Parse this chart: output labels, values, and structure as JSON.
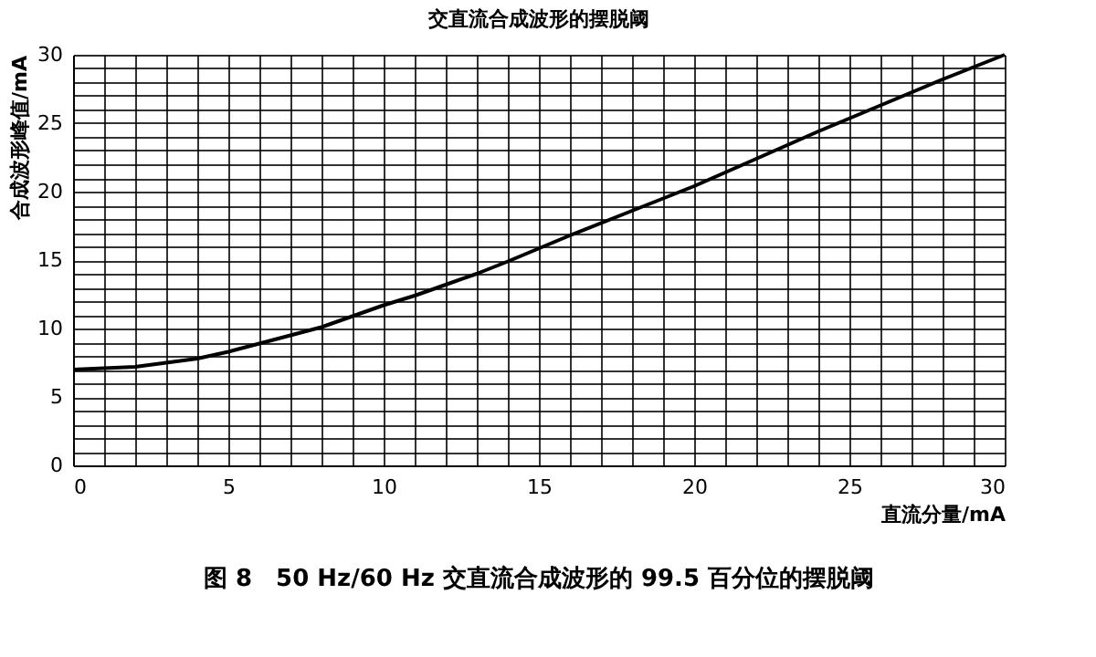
{
  "chart_data": {
    "type": "line",
    "title": "交直流合成波形的摆脱阈",
    "xlabel": "直流分量/mA",
    "ylabel": "合成波形峰值/mA",
    "annotations": [
      "图 8　50 Hz/60 Hz 交直流合成波形的 99.5 百分位的摆脱阈"
    ],
    "x": [
      0,
      1,
      2,
      3,
      4,
      5,
      6,
      7,
      8,
      9,
      10,
      11,
      12,
      13,
      14,
      16,
      18,
      20,
      22,
      24,
      26,
      28,
      30
    ],
    "series": [
      {
        "color": "#000000",
        "values": [
          7.0,
          7.1,
          7.2,
          7.5,
          7.8,
          8.3,
          8.9,
          9.5,
          10.1,
          10.9,
          11.7,
          12.4,
          13.2,
          14.0,
          14.9,
          16.8,
          18.6,
          20.4,
          22.4,
          24.4,
          26.3,
          28.2,
          30.0
        ]
      }
    ],
    "xlim": [
      0,
      30
    ],
    "ylim": [
      0,
      30
    ],
    "xticks": [
      0,
      {
        "value": 1,
        "label": null
      },
      {
        "value": 2,
        "label": null
      },
      {
        "value": 3,
        "label": null
      },
      {
        "value": 4,
        "label": null
      },
      5,
      {
        "value": 6,
        "label": null
      },
      {
        "value": 7,
        "label": null
      },
      {
        "value": 8,
        "label": null
      },
      {
        "value": 9,
        "label": null
      },
      10,
      {
        "value": 11,
        "label": null
      },
      {
        "value": 12,
        "label": null
      },
      {
        "value": 13,
        "label": null
      },
      {
        "value": 14,
        "label": null
      },
      15,
      {
        "value": 16,
        "label": null
      },
      {
        "value": 17,
        "label": null
      },
      {
        "value": 18,
        "label": null
      },
      {
        "value": 19,
        "label": null
      },
      20,
      {
        "value": 21,
        "label": null
      },
      {
        "value": 22,
        "label": null
      },
      {
        "value": 23,
        "label": null
      },
      {
        "value": 24,
        "label": null
      },
      25,
      {
        "value": 26,
        "label": null
      },
      {
        "value": 27,
        "label": null
      },
      {
        "value": 28,
        "label": null
      },
      {
        "value": 29,
        "label": null
      },
      30
    ],
    "yticks": [
      0,
      {
        "value": 1,
        "label": null
      },
      {
        "value": 2,
        "label": null
      },
      {
        "value": 3,
        "label": null
      },
      {
        "value": 4,
        "label": null
      },
      5,
      {
        "value": 6,
        "label": null
      },
      {
        "value": 7,
        "label": null
      },
      {
        "value": 8,
        "label": null
      },
      {
        "value": 9,
        "label": null
      },
      10,
      {
        "value": 11,
        "label": null
      },
      {
        "value": 12,
        "label": null
      },
      {
        "value": 13,
        "label": null
      },
      {
        "value": 14,
        "label": null
      },
      15,
      {
        "value": 16,
        "label": null
      },
      {
        "value": 17,
        "label": null
      },
      {
        "value": 18,
        "label": null
      },
      {
        "value": 19,
        "label": null
      },
      20,
      {
        "value": 21,
        "label": null
      },
      {
        "value": 22,
        "label": null
      },
      {
        "value": 23,
        "label": null
      },
      {
        "value": 24,
        "label": null
      },
      25,
      {
        "value": 26,
        "label": null
      },
      {
        "value": 27,
        "label": null
      },
      {
        "value": 28,
        "label": null
      },
      {
        "value": 29,
        "label": null
      },
      30
    ],
    "grid": true,
    "legend": false,
    "marker": "none",
    "line_style": "solid"
  }
}
